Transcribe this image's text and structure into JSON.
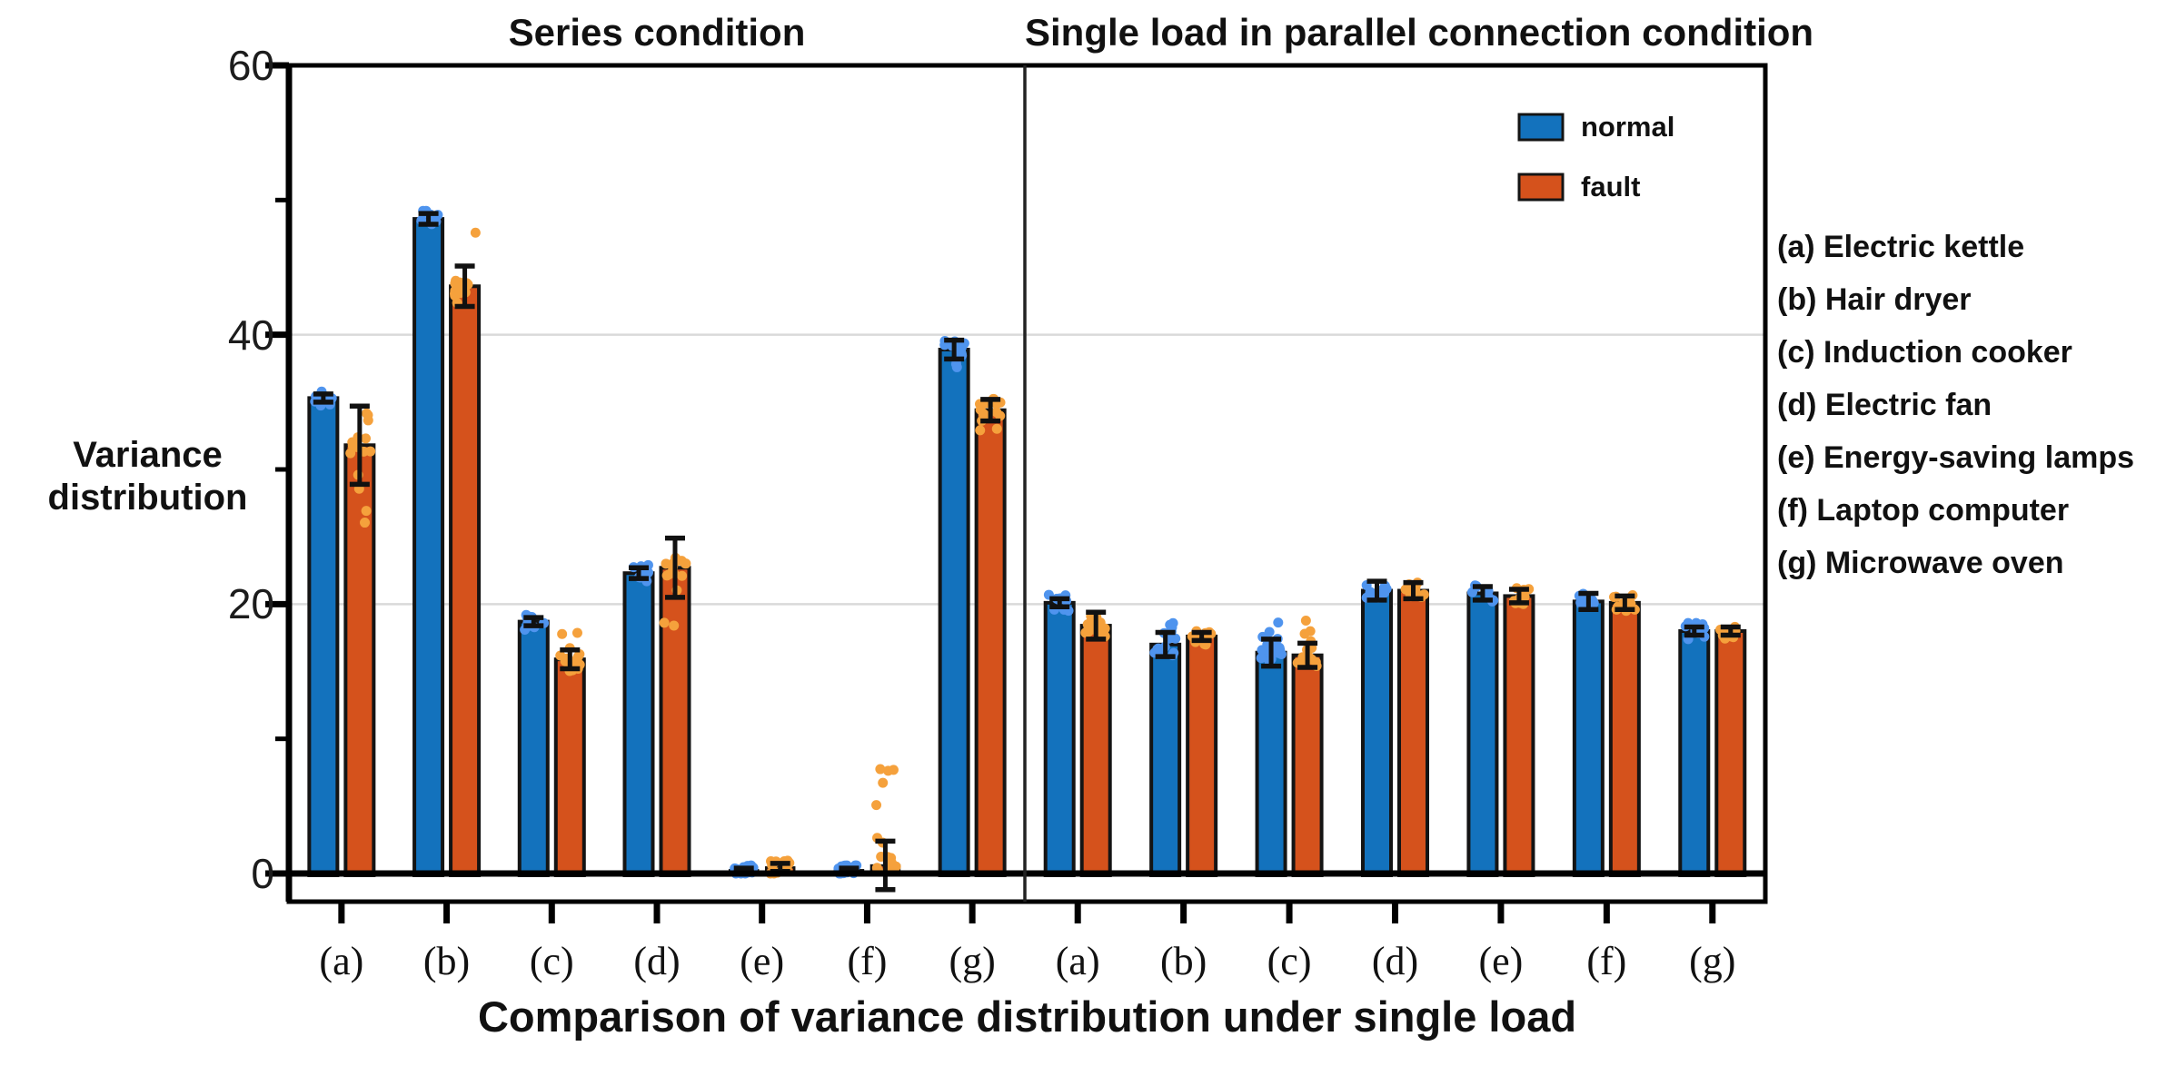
{
  "figure": {
    "title_left": "Series condition",
    "title_right": "Single load in parallel connection condition",
    "y_axis_label_line1": "Variance",
    "y_axis_label_line2": "distribution",
    "x_axis_title": "Comparison of variance distribution under single load",
    "legend": {
      "normal_label": "normal",
      "fault_label": "fault"
    },
    "annotations": {
      "items": [
        "(a) Electric kettle",
        "(b) Hair dryer",
        "(c) Induction cooker",
        "(d) Electric fan",
        "(e) Energy-saving lamps",
        "(f) Laptop computer",
        "(g) Microwave oven"
      ]
    }
  },
  "colors": {
    "normal_bar": "#1372bd",
    "fault_bar": "#d5521c",
    "normal_scatter": "#4f94ee",
    "fault_scatter": "#f5a13c",
    "bar_edge": "#141414",
    "gridline": "#d9d9d9",
    "axis": "#000000",
    "errorbar": "#111111"
  },
  "chart_data": {
    "type": "bar",
    "title": "Comparison of variance distribution under single load",
    "ylabel": "Variance distribution",
    "ylim": [
      0,
      60
    ],
    "yticks_major": [
      0,
      20,
      40,
      60
    ],
    "yticks_minor": [
      10,
      30,
      50
    ],
    "gridlines_at": [
      20,
      40
    ],
    "grid": "horizontal only",
    "legend_position": "top-right of right panel",
    "legend_entries": [
      "normal",
      "fault"
    ],
    "panels": [
      {
        "panel_title": "Series condition",
        "categories": [
          "(a)",
          "(b)",
          "(c)",
          "(d)",
          "(e)",
          "(f)",
          "(g)"
        ],
        "series": [
          {
            "name": "normal",
            "values": [
              35.3,
              48.6,
              18.7,
              22.3,
              0.25,
              0.25,
              38.9
            ],
            "errors": [
              0.3,
              0.4,
              0.3,
              0.4,
              0.15,
              0.15,
              0.7
            ],
            "scatter_ranges": [
              null,
              null,
              null,
              null,
              [
                0.0,
                0.6
              ],
              [
                0.0,
                0.6
              ],
              [
                37.5,
                40.3
              ]
            ]
          },
          {
            "name": "fault",
            "values": [
              31.8,
              43.6,
              15.9,
              22.7,
              0.45,
              0.6,
              34.4
            ],
            "errors": [
              2.9,
              1.5,
              0.7,
              2.2,
              0.3,
              1.8,
              0.8
            ],
            "scatter_ranges": [
              [
                23.5,
                35.0
              ],
              [
                41.8,
                48.2
              ],
              [
                15.0,
                18.3
              ],
              [
                16.0,
                25.5
              ],
              [
                0.0,
                1.0
              ],
              [
                0.2,
                8.9
              ],
              [
                32.5,
                36.0
              ]
            ]
          }
        ]
      },
      {
        "panel_title": "Single load in parallel connection condition",
        "categories": [
          "(a)",
          "(b)",
          "(c)",
          "(d)",
          "(e)",
          "(f)",
          "(g)"
        ],
        "series": [
          {
            "name": "normal",
            "values": [
              20.1,
              17.0,
              16.4,
              21.0,
              20.8,
              20.2,
              18.0
            ],
            "errors": [
              0.3,
              0.9,
              1.0,
              0.7,
              0.5,
              0.6,
              0.3
            ],
            "scatter_ranges": [
              null,
              [
                15.9,
                18.6
              ],
              [
                15.4,
                19.3
              ],
              null,
              null,
              null,
              null
            ]
          },
          {
            "name": "fault",
            "values": [
              18.4,
              17.6,
              16.2,
              21.0,
              20.6,
              20.1,
              18.0
            ],
            "errors": [
              1.0,
              0.3,
              0.9,
              0.6,
              0.5,
              0.5,
              0.3
            ],
            "scatter_ranges": [
              [
                17.2,
                20.0
              ],
              null,
              [
                15.3,
                19.0
              ],
              null,
              null,
              null,
              null
            ]
          }
        ]
      }
    ]
  }
}
